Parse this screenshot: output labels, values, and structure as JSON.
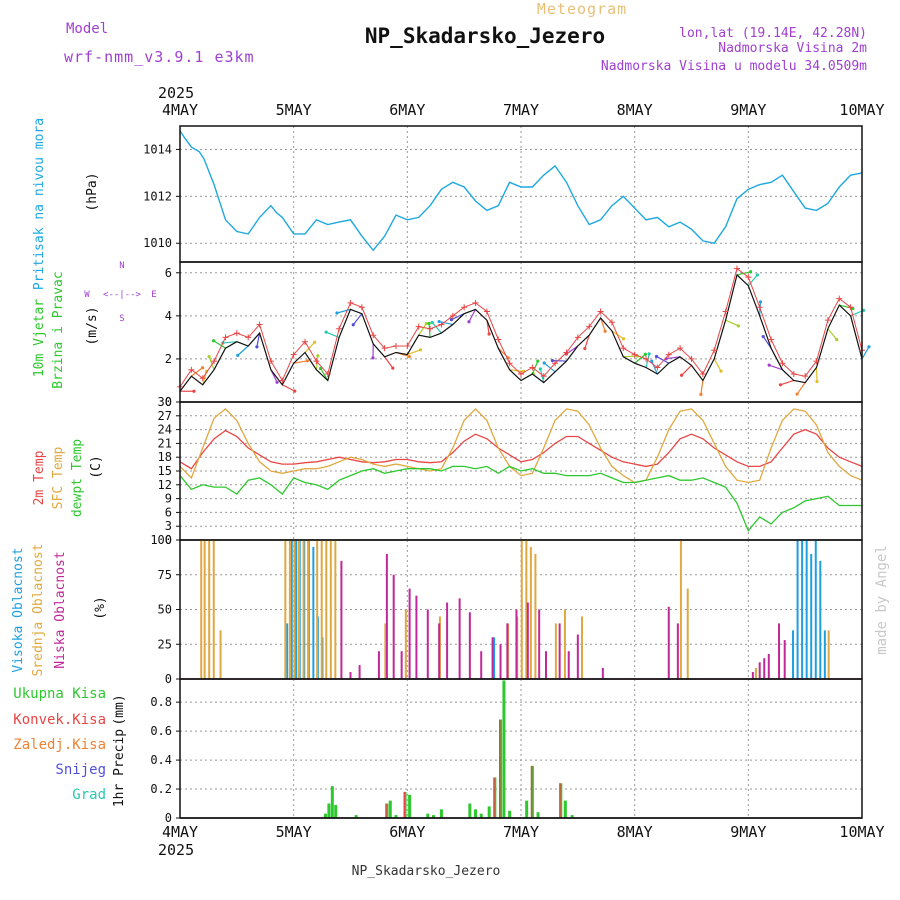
{
  "header": {
    "meteogram_label": "Meteogram",
    "station_title": "NP_Skadarsko_Jezero",
    "model_label": "Model",
    "model_name": "wrf-nmm_v3.9.1 e3km",
    "lonlat": "lon,lat (19.14E, 42.28N)",
    "altitude": "Nadmorska Visina 2m",
    "model_altitude": "Nadmorska Visina u modelu 34.0509m",
    "footer_station": "NP_Skadarsko_Jezero",
    "watermark": "made by Angel"
  },
  "colors": {
    "pressure": "#1fa8e0",
    "temp2m": "#e84646",
    "sfc_temp": "#e0a840",
    "dewpt": "#2ec82e",
    "high_cloud": "#1ea0e0",
    "mid_cloud": "#e0a840",
    "low_cloud": "#c0289a",
    "total_precip": "#2ec82e",
    "conv_precip": "#e84646",
    "frz_precip": "#f08232",
    "snow": "#5050dc",
    "grad": "#28c8b4",
    "wind_label": "#2ec82e",
    "compass": "#a040d0",
    "model_text": "#a040d0",
    "meteogram_text": "#e8c078",
    "watermark": "#c8c8c8"
  },
  "time_axis": {
    "year": "2025",
    "days": [
      "4MAY",
      "5MAY",
      "6MAY",
      "7MAY",
      "8MAY",
      "9MAY",
      "10MAY"
    ]
  },
  "compass": {
    "n": "N",
    "s": "S",
    "e": "E",
    "w": "W"
  },
  "chart_data": [
    {
      "id": "pressure",
      "type": "line",
      "title": "Pritisak na nivou mora",
      "ylabel": "(hPa)",
      "ylim": [
        1009.2,
        1015.0
      ],
      "yticks": [
        1010,
        1012,
        1014
      ],
      "x_days": [
        0.0,
        0.04,
        0.1,
        0.17,
        0.21,
        0.3,
        0.4,
        0.5,
        0.6,
        0.7,
        0.8,
        0.85,
        0.9,
        1.0,
        1.1,
        1.2,
        1.3,
        1.4,
        1.5,
        1.6,
        1.7,
        1.8,
        1.9,
        2.0,
        2.1,
        2.2,
        2.3,
        2.4,
        2.5,
        2.6,
        2.7,
        2.8,
        2.9,
        3.0,
        3.1,
        3.2,
        3.3,
        3.4,
        3.5,
        3.6,
        3.7,
        3.8,
        3.9,
        4.0,
        4.1,
        4.2,
        4.3,
        4.4,
        4.5,
        4.6,
        4.7,
        4.8,
        4.9,
        5.0,
        5.1,
        5.2,
        5.3,
        5.4,
        5.5,
        5.6,
        5.7,
        5.8,
        5.9,
        6.0
      ],
      "values": [
        1014.8,
        1014.5,
        1014.1,
        1013.9,
        1013.6,
        1012.5,
        1011.0,
        1010.5,
        1010.4,
        1011.1,
        1011.6,
        1011.3,
        1011.1,
        1010.4,
        1010.4,
        1011.0,
        1010.8,
        1010.9,
        1011.0,
        1010.3,
        1009.7,
        1010.3,
        1011.2,
        1011.0,
        1011.1,
        1011.6,
        1012.3,
        1012.6,
        1012.4,
        1011.8,
        1011.4,
        1011.6,
        1012.6,
        1012.4,
        1012.4,
        1012.9,
        1013.3,
        1012.6,
        1011.6,
        1010.8,
        1011.0,
        1011.6,
        1012.0,
        1011.5,
        1011.0,
        1011.1,
        1010.7,
        1010.9,
        1010.6,
        1010.1,
        1010.0,
        1010.7,
        1011.9,
        1012.3,
        1012.5,
        1012.6,
        1012.9,
        1012.2,
        1011.5,
        1011.4,
        1011.7,
        1012.4,
        1012.9,
        1013.0
      ]
    },
    {
      "id": "wind",
      "type": "line",
      "title": "10m Vjetar",
      "subtitle": "Brzina i Pravac",
      "ylabel": "(m/s)",
      "ylim": [
        0,
        6.5
      ],
      "yticks": [
        0,
        2,
        4,
        6
      ],
      "x_days": [
        0.0,
        0.1,
        0.2,
        0.3,
        0.4,
        0.5,
        0.6,
        0.7,
        0.8,
        0.9,
        1.0,
        1.1,
        1.2,
        1.3,
        1.4,
        1.5,
        1.6,
        1.7,
        1.8,
        1.9,
        2.0,
        2.1,
        2.2,
        2.3,
        2.4,
        2.5,
        2.6,
        2.7,
        2.8,
        2.9,
        3.0,
        3.1,
        3.2,
        3.3,
        3.4,
        3.5,
        3.6,
        3.7,
        3.8,
        3.9,
        4.0,
        4.1,
        4.2,
        4.3,
        4.4,
        4.5,
        4.6,
        4.7,
        4.8,
        4.9,
        5.0,
        5.1,
        5.2,
        5.3,
        5.4,
        5.5,
        5.6,
        5.7,
        5.8,
        5.9,
        6.0
      ],
      "speed_values": [
        0.5,
        1.2,
        0.8,
        1.5,
        2.5,
        2.8,
        2.6,
        3.2,
        1.5,
        0.8,
        1.8,
        2.3,
        1.5,
        1.0,
        3.0,
        4.3,
        4.1,
        2.7,
        2.1,
        2.3,
        2.2,
        3.1,
        3.0,
        3.2,
        3.6,
        4.1,
        4.3,
        3.8,
        2.5,
        1.5,
        1.0,
        1.3,
        0.9,
        1.4,
        1.9,
        2.6,
        3.1,
        3.9,
        3.3,
        2.1,
        1.8,
        1.6,
        1.3,
        1.8,
        2.1,
        1.7,
        1.0,
        2.0,
        3.8,
        5.9,
        5.4,
        4.0,
        2.5,
        1.5,
        1.0,
        0.9,
        1.6,
        3.4,
        4.5,
        4.0,
        2.0
      ],
      "gust_values": [
        0.7,
        1.5,
        1.1,
        1.9,
        3.0,
        3.2,
        3.0,
        3.6,
        1.9,
        1.0,
        2.2,
        2.8,
        1.9,
        1.3,
        3.4,
        4.6,
        4.4,
        3.1,
        2.5,
        2.6,
        2.6,
        3.5,
        3.4,
        3.6,
        4.0,
        4.4,
        4.6,
        4.2,
        2.9,
        1.8,
        1.3,
        1.6,
        1.2,
        1.8,
        2.3,
        3.0,
        3.5,
        4.2,
        3.7,
        2.5,
        2.2,
        2.0,
        1.6,
        2.2,
        2.5,
        2.0,
        1.3,
        2.4,
        4.2,
        6.2,
        5.8,
        4.4,
        2.9,
        1.8,
        1.3,
        1.2,
        1.9,
        3.8,
        4.8,
        4.4,
        2.4
      ]
    },
    {
      "id": "temperature",
      "type": "line",
      "title": "2m Temp",
      "subtitle_sfc": "SFC Temp",
      "subtitle_dew": "dewpt Temp",
      "ylabel": "(C)",
      "ylim": [
        0,
        30
      ],
      "yticks": [
        0,
        3,
        6,
        9,
        12,
        15,
        18,
        21,
        24,
        27,
        30
      ],
      "x_days": [
        0.0,
        0.1,
        0.2,
        0.3,
        0.4,
        0.5,
        0.6,
        0.7,
        0.8,
        0.9,
        1.0,
        1.1,
        1.2,
        1.3,
        1.4,
        1.5,
        1.6,
        1.7,
        1.8,
        1.9,
        2.0,
        2.1,
        2.2,
        2.3,
        2.4,
        2.5,
        2.6,
        2.7,
        2.8,
        2.9,
        3.0,
        3.1,
        3.2,
        3.3,
        3.4,
        3.5,
        3.6,
        3.7,
        3.8,
        3.9,
        4.0,
        4.1,
        4.2,
        4.3,
        4.4,
        4.5,
        4.6,
        4.7,
        4.8,
        4.9,
        5.0,
        5.1,
        5.2,
        5.3,
        5.4,
        5.5,
        5.6,
        5.7,
        5.8,
        5.9,
        6.0
      ],
      "series": [
        {
          "name": "2m Temp",
          "color_key": "temp2m",
          "values": [
            17,
            15.5,
            19,
            22,
            23.8,
            22.5,
            20,
            18.5,
            17,
            16.5,
            16.5,
            16.8,
            17,
            17.5,
            18,
            17.5,
            17,
            16.8,
            17,
            17.5,
            17.5,
            17,
            16.8,
            17,
            19,
            21.5,
            23,
            22,
            20,
            18.5,
            17,
            17.5,
            19,
            21,
            22.5,
            22.5,
            21,
            19.5,
            18,
            17,
            16.5,
            16,
            16.5,
            19,
            22,
            23,
            22,
            20,
            18.5,
            17,
            16,
            16,
            17,
            20,
            23,
            24,
            23,
            20,
            18,
            17,
            16
          ]
        },
        {
          "name": "SFC Temp",
          "color_key": "sfc_temp",
          "values": [
            16,
            13.5,
            20,
            26.5,
            28.5,
            26,
            21,
            17,
            15,
            14.5,
            15,
            15.5,
            15.5,
            16,
            17,
            18,
            17.5,
            16.5,
            16,
            16.5,
            16,
            15.5,
            15,
            15.5,
            20,
            26,
            28.5,
            26,
            20,
            16,
            14,
            14.5,
            20,
            26,
            28.5,
            28,
            25,
            20,
            16,
            14,
            12.5,
            13,
            18,
            24,
            28,
            28.5,
            26,
            21,
            16,
            13,
            12.5,
            13,
            20,
            26,
            28.5,
            28,
            25,
            19,
            16,
            14,
            13
          ]
        },
        {
          "name": "dewpt Temp",
          "color_key": "dewpt",
          "values": [
            14,
            11,
            12,
            11.5,
            11.5,
            10,
            13,
            13.5,
            12,
            10,
            13.5,
            12.5,
            12,
            11,
            13,
            14,
            15,
            15.5,
            14.5,
            15,
            15.5,
            15.5,
            15.5,
            15,
            16,
            16,
            15.5,
            16,
            14.5,
            16,
            15,
            15.5,
            14.5,
            14.5,
            14,
            14,
            14,
            14.5,
            13.5,
            12.5,
            12.5,
            13,
            13.5,
            14,
            13,
            13,
            13.5,
            12.5,
            11.5,
            8,
            2,
            5,
            3.5,
            6,
            7,
            8.5,
            9,
            9.5,
            7.5,
            7.5,
            7.5
          ]
        }
      ]
    },
    {
      "id": "clouds",
      "type": "bar",
      "title_high": "Visoka Oblacnost",
      "title_mid": "Srednja Oblacnost",
      "title_low": "Niska Oblacnost",
      "ylabel": "(%)",
      "ylim": [
        0,
        100
      ],
      "yticks": [
        0,
        25,
        50,
        75,
        100
      ],
      "series": [
        {
          "name": "Visoka Oblacnost",
          "color_key": "high_cloud",
          "points": [
            [
              0.93,
              40
            ],
            [
              0.97,
              100
            ],
            [
              1.01,
              100
            ],
            [
              1.04,
              100
            ],
            [
              1.08,
              100
            ],
            [
              1.12,
              100
            ],
            [
              1.16,
              95
            ],
            [
              1.2,
              45
            ],
            [
              1.24,
              30
            ],
            [
              2.75,
              30
            ],
            [
              5.38,
              35
            ],
            [
              5.42,
              100
            ],
            [
              5.46,
              100
            ],
            [
              5.5,
              100
            ],
            [
              5.54,
              90
            ],
            [
              5.58,
              100
            ],
            [
              5.62,
              85
            ],
            [
              5.66,
              35
            ]
          ]
        },
        {
          "name": "Srednja Oblacnost",
          "color_key": "mid_cloud",
          "points": [
            [
              0.2,
              100
            ],
            [
              0.23,
              100
            ],
            [
              0.27,
              100
            ],
            [
              0.31,
              100
            ],
            [
              0.37,
              35
            ],
            [
              0.94,
              100
            ],
            [
              0.98,
              100
            ],
            [
              1.02,
              100
            ],
            [
              1.06,
              100
            ],
            [
              1.1,
              100
            ],
            [
              1.14,
              100
            ],
            [
              1.22,
              100
            ],
            [
              1.26,
              100
            ],
            [
              1.3,
              100
            ],
            [
              1.34,
              100
            ],
            [
              1.38,
              100
            ],
            [
              1.82,
              40
            ],
            [
              2.0,
              50
            ],
            [
              2.3,
              45
            ],
            [
              2.9,
              40
            ],
            [
              2.98,
              45
            ],
            [
              3.02,
              100
            ],
            [
              3.06,
              100
            ],
            [
              3.1,
              95
            ],
            [
              3.14,
              90
            ],
            [
              3.32,
              40
            ],
            [
              3.4,
              50
            ],
            [
              3.55,
              45
            ],
            [
              4.42,
              100
            ],
            [
              4.48,
              65
            ],
            [
              5.08,
              8
            ],
            [
              5.72,
              35
            ]
          ]
        },
        {
          "name": "Niska Oblacnost",
          "color_key": "low_cloud",
          "points": [
            [
              1.42,
              85
            ],
            [
              1.5,
              5
            ],
            [
              1.58,
              10
            ],
            [
              1.75,
              20
            ],
            [
              1.82,
              90
            ],
            [
              1.88,
              75
            ],
            [
              1.95,
              20
            ],
            [
              2.02,
              65
            ],
            [
              2.08,
              60
            ],
            [
              2.18,
              50
            ],
            [
              2.28,
              40
            ],
            [
              2.35,
              55
            ],
            [
              2.46,
              58
            ],
            [
              2.55,
              48
            ],
            [
              2.65,
              20
            ],
            [
              2.75,
              30
            ],
            [
              2.82,
              25
            ],
            [
              2.88,
              40
            ],
            [
              2.96,
              50
            ],
            [
              3.06,
              55
            ],
            [
              3.16,
              50
            ],
            [
              3.22,
              20
            ],
            [
              3.34,
              40
            ],
            [
              3.42,
              20
            ],
            [
              3.5,
              32
            ],
            [
              3.72,
              8
            ],
            [
              4.3,
              52
            ],
            [
              4.38,
              40
            ],
            [
              5.04,
              5
            ],
            [
              5.1,
              12
            ],
            [
              5.14,
              15
            ],
            [
              5.18,
              18
            ],
            [
              5.27,
              40
            ],
            [
              5.32,
              28
            ]
          ]
        }
      ]
    },
    {
      "id": "precip",
      "type": "bar",
      "title": "1hr Precip",
      "ylabel": "(mm)",
      "legend": [
        "Ukupna Kisa",
        "Konvek.Kisa",
        "Zaledj.Kisa",
        "Snijeg",
        "Grad"
      ],
      "ylim": [
        0,
        0.96
      ],
      "yticks": [
        0,
        0.2,
        0.4,
        0.6,
        0.8
      ],
      "ytick_labels": [
        "0",
        "0.2",
        "0.4",
        "0.6",
        "0.8"
      ],
      "series": [
        {
          "name": "Ukupna Kisa",
          "color_key": "total_precip",
          "points": [
            [
              1.28,
              0.03
            ],
            [
              1.31,
              0.1
            ],
            [
              1.34,
              0.22
            ],
            [
              1.37,
              0.09
            ],
            [
              1.55,
              0.02
            ],
            [
              1.82,
              0.1
            ],
            [
              1.85,
              0.12
            ],
            [
              1.9,
              0.02
            ],
            [
              1.98,
              0.18
            ],
            [
              2.02,
              0.16
            ],
            [
              2.18,
              0.03
            ],
            [
              2.23,
              0.02
            ],
            [
              2.3,
              0.06
            ],
            [
              2.55,
              0.1
            ],
            [
              2.6,
              0.06
            ],
            [
              2.65,
              0.03
            ],
            [
              2.72,
              0.08
            ],
            [
              2.77,
              0.28
            ],
            [
              2.82,
              0.68
            ],
            [
              2.85,
              0.95
            ],
            [
              2.9,
              0.05
            ],
            [
              3.05,
              0.12
            ],
            [
              3.1,
              0.36
            ],
            [
              3.15,
              0.04
            ],
            [
              3.35,
              0.24
            ],
            [
              3.39,
              0.12
            ],
            [
              3.45,
              0.02
            ]
          ]
        },
        {
          "name": "Konvek.Kisa",
          "color_key": "conv_precip",
          "points": [
            [
              1.82,
              0.1
            ],
            [
              1.98,
              0.18
            ],
            [
              2.77,
              0.28
            ],
            [
              2.82,
              0.68
            ],
            [
              3.1,
              0.36
            ],
            [
              3.35,
              0.24
            ]
          ]
        }
      ]
    }
  ]
}
